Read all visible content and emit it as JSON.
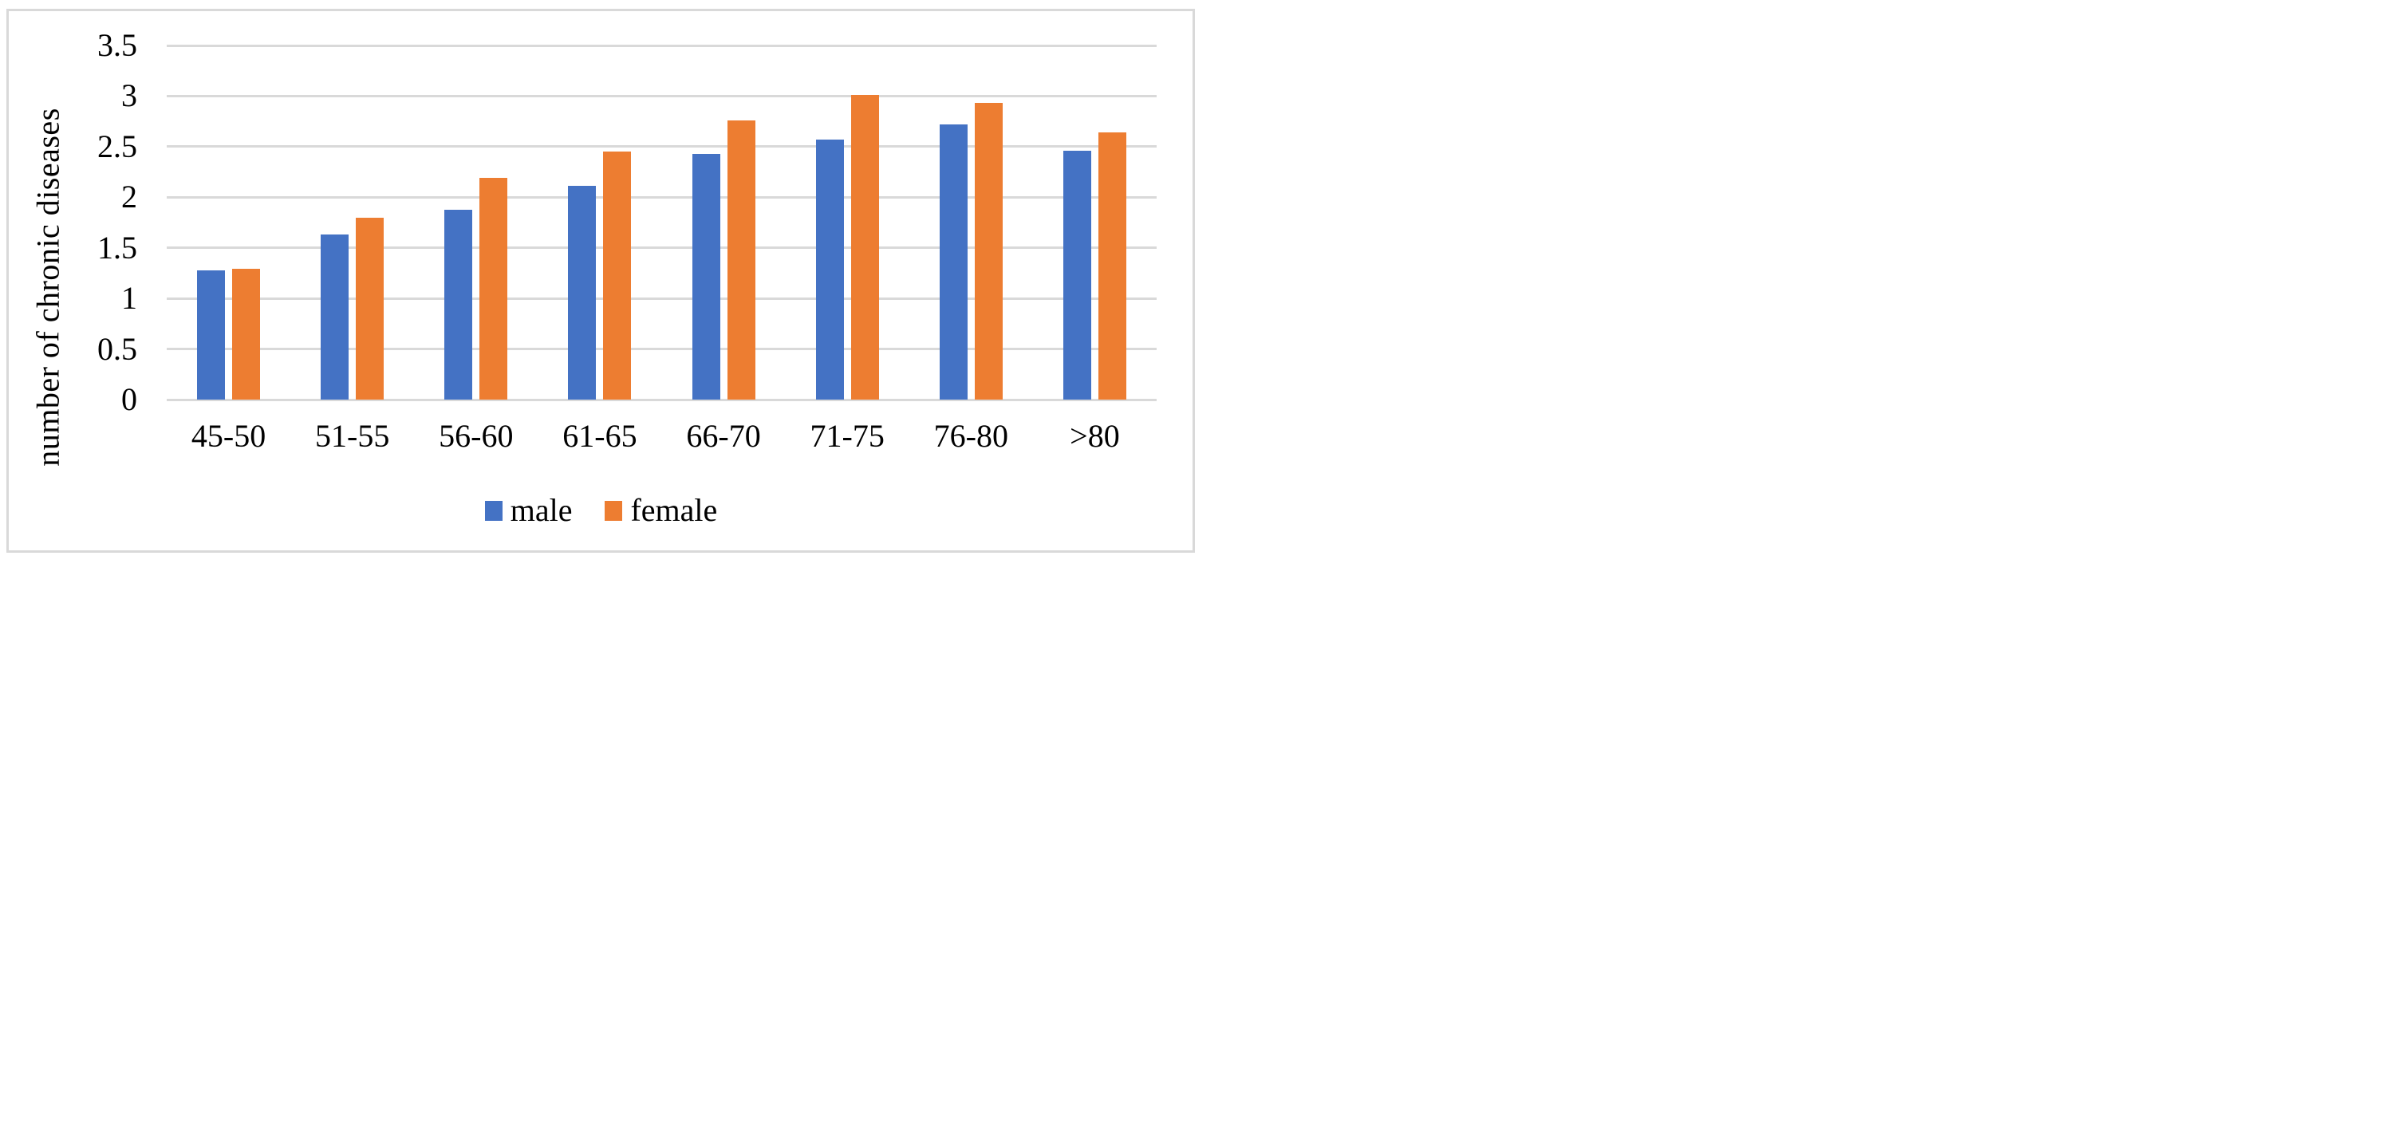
{
  "chart_data": {
    "type": "bar",
    "title": "",
    "xlabel": "",
    "ylabel": "number of chronic diseases",
    "categories": [
      "45-50",
      "51-55",
      "56-60",
      "61-65",
      "66-70",
      "71-75",
      "76-80",
      ">80"
    ],
    "series": [
      {
        "name": "male",
        "color": "#4472C4",
        "values": [
          1.28,
          1.63,
          1.88,
          2.11,
          2.43,
          2.57,
          2.72,
          2.46
        ]
      },
      {
        "name": "female",
        "color": "#ED7D31",
        "values": [
          1.29,
          1.8,
          2.19,
          2.45,
          2.76,
          3.01,
          2.93,
          2.64
        ]
      }
    ],
    "ylim": [
      0,
      3.5
    ],
    "ytick_labels": [
      "0",
      "0.5",
      "1",
      "1.5",
      "2",
      "2.5",
      "3",
      "3.5"
    ],
    "grid": true,
    "gridline_color": "#D9D9D9",
    "frame_color": "#D9D9D9",
    "legend_position": "bottom"
  }
}
